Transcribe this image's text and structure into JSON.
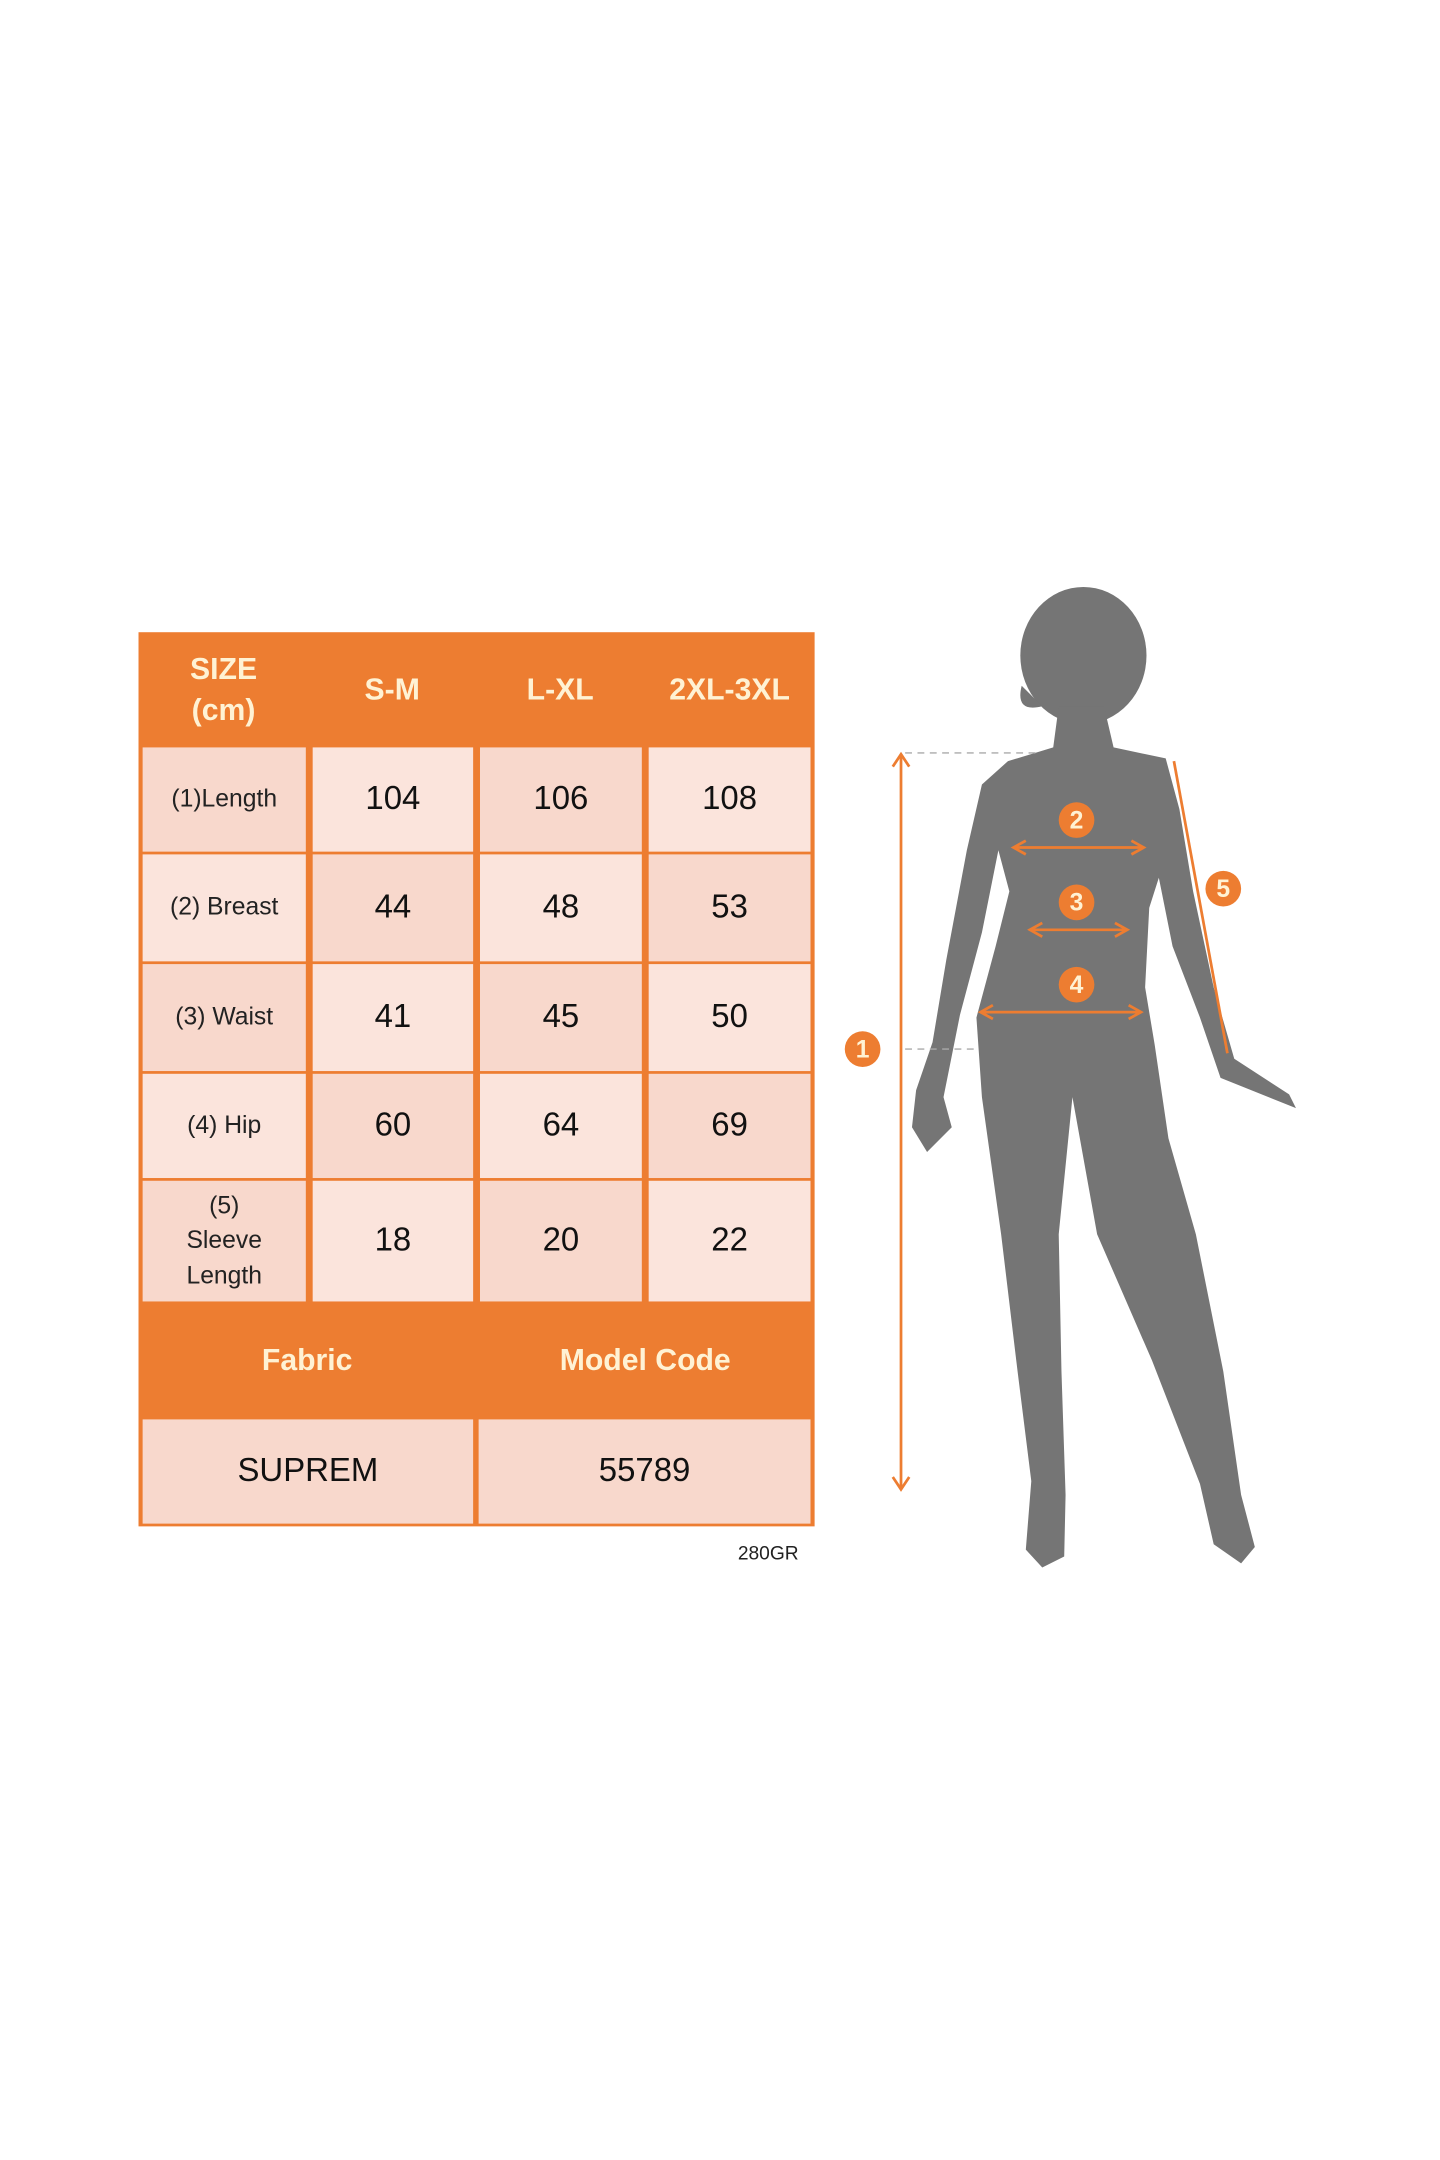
{
  "table": {
    "header": [
      "SIZE\n(cm)",
      "S-M",
      "L-XL",
      "2XL-3XL"
    ],
    "header_size": "SIZE",
    "header_unit": "(cm)",
    "rows": [
      {
        "label": "(1)Length",
        "values": [
          "104",
          "106",
          "108"
        ]
      },
      {
        "label": "(2) Breast",
        "values": [
          "44",
          "48",
          "53"
        ]
      },
      {
        "label": "(3) Waist",
        "values": [
          "41",
          "45",
          "50"
        ]
      },
      {
        "label": "(4) Hip",
        "values": [
          "60",
          "64",
          "69"
        ]
      },
      {
        "label": "(5) Sleeve Length",
        "values": [
          "18",
          "20",
          "22"
        ]
      }
    ],
    "fabric_label": "Fabric",
    "model_code_label": "Model Code",
    "fabric_value": "SUPREM",
    "model_code_value": "55789"
  },
  "footnote": "280GR",
  "figure": {
    "markers": [
      "1",
      "2",
      "3",
      "4",
      "5"
    ],
    "colors": {
      "accent": "#ed7d31",
      "silhouette": "#757575",
      "cell": "#f8d8cc",
      "header_text": "#fff2d4"
    }
  }
}
